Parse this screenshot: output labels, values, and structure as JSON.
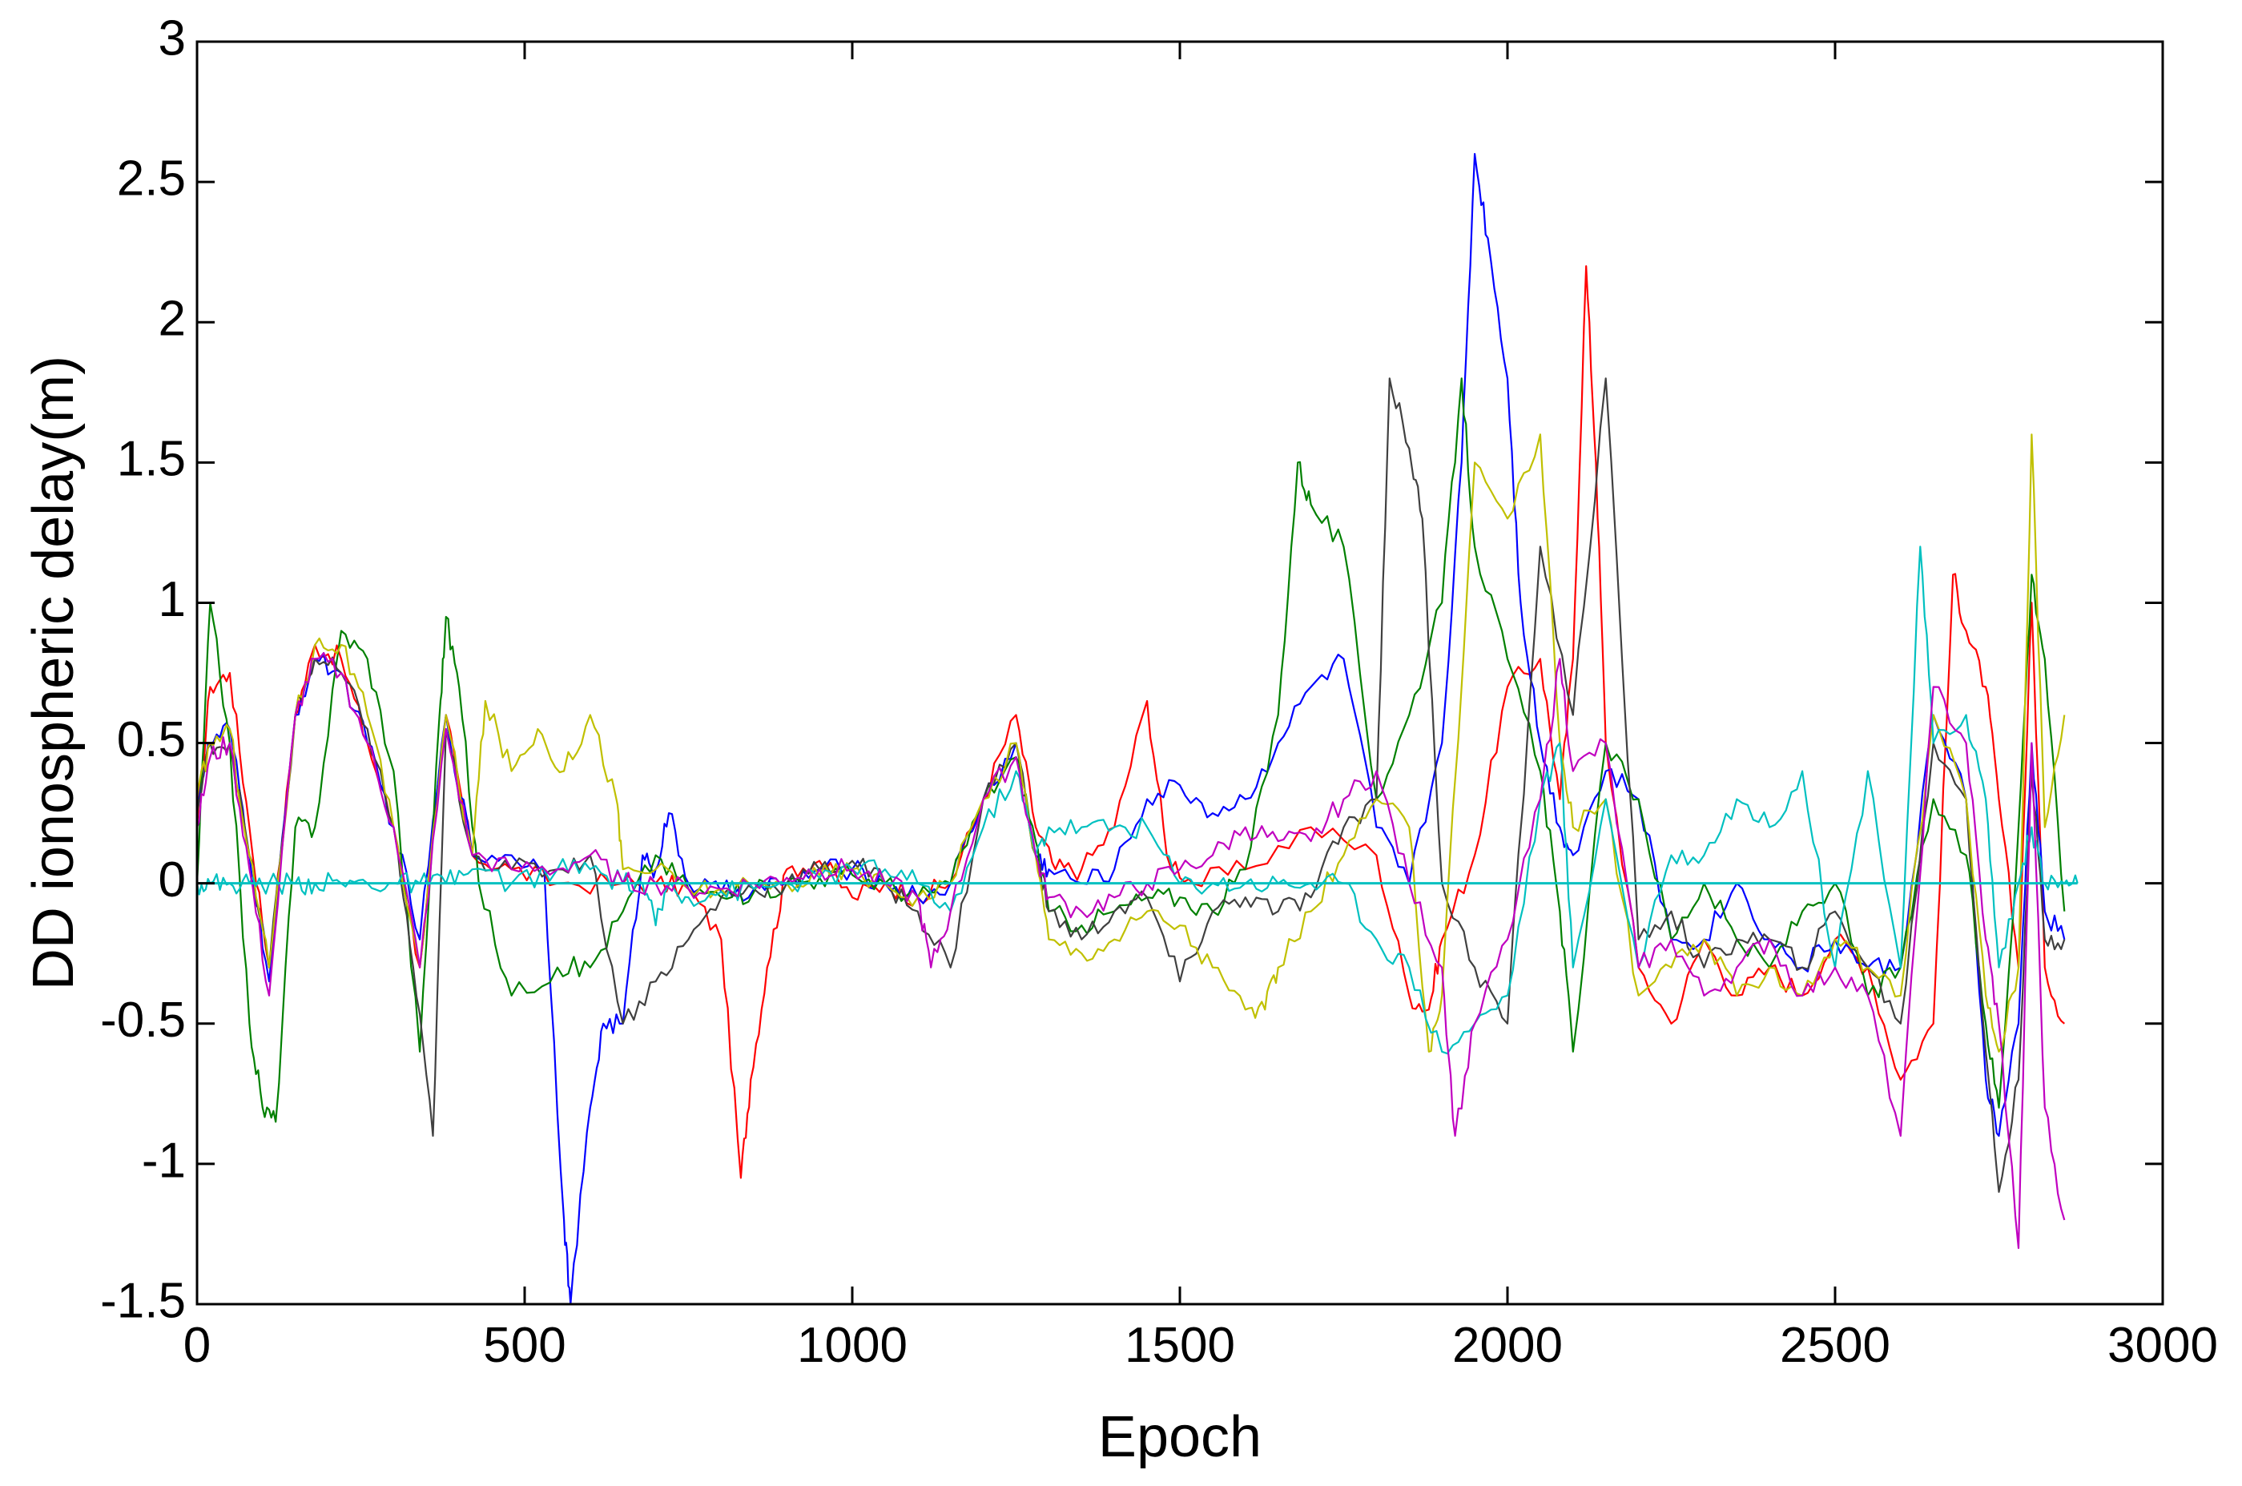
{
  "chart_data": {
    "type": "line",
    "title": "",
    "xlabel": "Epoch",
    "ylabel": "DD ionospheric delay(m)",
    "xlim": [
      0,
      3000
    ],
    "ylim": [
      -1.5,
      3
    ],
    "xticks": [
      0,
      500,
      1000,
      1500,
      2000,
      2500,
      3000
    ],
    "yticks": [
      -1.5,
      -1,
      -0.5,
      0,
      0.5,
      1,
      1.5,
      2,
      2.5,
      3
    ],
    "xtick_labels": [
      "0",
      "500",
      "1000",
      "1500",
      "2000",
      "2500",
      "3000"
    ],
    "ytick_labels": [
      "-1.5",
      "-1",
      "-0.5",
      "0",
      "0.5",
      "1",
      "1.5",
      "2",
      "2.5",
      "3"
    ],
    "grid": false,
    "legend": "none",
    "series": [
      {
        "color": "#ff0000",
        "x": [
          0,
          20,
          50,
          80,
          110,
          150,
          180,
          220,
          260,
          300,
          340,
          380,
          420,
          480,
          550,
          650,
          700,
          750,
          800,
          830,
          845,
          870,
          900,
          950,
          1000,
          1050,
          1100,
          1150,
          1200,
          1250,
          1280,
          1310,
          1350,
          1400,
          1450,
          1480,
          1520,
          1600,
          1700,
          1800,
          1850,
          1880,
          1900,
          1950,
          2000,
          2050,
          2080,
          2100,
          2120,
          2135,
          2150,
          2200,
          2250,
          2300,
          2350,
          2400,
          2450,
          2500,
          2550,
          2600,
          2650,
          2680,
          2700,
          2730,
          2750,
          2780,
          2800,
          2820,
          2850
        ],
        "y": [
          0.2,
          0.7,
          0.75,
          0.2,
          -0.3,
          0.6,
          0.85,
          0.8,
          0.5,
          0.2,
          -0.3,
          0.6,
          0.1,
          0.05,
          0.0,
          0.0,
          0.0,
          -0.02,
          -0.2,
          -1.05,
          -0.7,
          -0.3,
          0.05,
          0.08,
          -0.05,
          0.0,
          -0.05,
          0.0,
          0.3,
          0.6,
          0.2,
          0.05,
          0.05,
          0.2,
          0.65,
          0.1,
          0.0,
          0.05,
          0.2,
          0.1,
          -0.4,
          -0.45,
          -0.2,
          0.1,
          0.7,
          0.8,
          0.3,
          0.8,
          2.2,
          1.5,
          0.5,
          -0.3,
          -0.5,
          -0.2,
          -0.4,
          -0.3,
          -0.4,
          -0.2,
          -0.3,
          -0.7,
          -0.5,
          1.1,
          0.9,
          0.7,
          0.3,
          -0.3,
          1.0,
          -0.3,
          -0.5
        ]
      },
      {
        "color": "#0000ff",
        "x": [
          0,
          20,
          50,
          80,
          110,
          150,
          180,
          220,
          260,
          300,
          340,
          380,
          420,
          480,
          530,
          560,
          570,
          600,
          620,
          650,
          680,
          700,
          720,
          750,
          800,
          850,
          900,
          950,
          1000,
          1050,
          1100,
          1150,
          1200,
          1250,
          1280,
          1300,
          1350,
          1400,
          1450,
          1500,
          1550,
          1600,
          1650,
          1700,
          1750,
          1800,
          1850,
          1900,
          1930,
          1950,
          1970,
          2000,
          2020,
          2050,
          2080,
          2100,
          2150,
          2200,
          2250,
          2300,
          2350,
          2400,
          2450,
          2500,
          2550,
          2600,
          2650,
          2700,
          2730,
          2750,
          2780,
          2800,
          2820,
          2850
        ],
        "y": [
          0.3,
          0.5,
          0.55,
          0.1,
          -0.35,
          0.6,
          0.8,
          0.75,
          0.5,
          0.2,
          -0.2,
          0.6,
          0.1,
          0.1,
          0.05,
          -1.2,
          -1.5,
          -0.8,
          -0.5,
          -0.5,
          0.1,
          0.05,
          0.25,
          0.0,
          -0.03,
          -0.02,
          0.0,
          0.05,
          0.05,
          0.0,
          -0.05,
          0.0,
          0.3,
          0.5,
          0.1,
          0.05,
          0.0,
          0.05,
          0.3,
          0.35,
          0.25,
          0.3,
          0.5,
          0.7,
          0.8,
          0.2,
          0.0,
          0.5,
          1.5,
          2.6,
          2.3,
          1.8,
          1.0,
          0.5,
          0.2,
          0.1,
          0.4,
          0.3,
          -0.2,
          -0.2,
          0.0,
          -0.2,
          -0.3,
          -0.2,
          -0.3,
          -0.3,
          0.6,
          0.3,
          -0.7,
          -0.9,
          -0.5,
          0.5,
          -0.1,
          -0.2
        ]
      },
      {
        "color": "#008000",
        "x": [
          0,
          20,
          50,
          80,
          100,
          120,
          150,
          180,
          220,
          260,
          300,
          340,
          370,
          380,
          400,
          430,
          480,
          550,
          600,
          650,
          700,
          750,
          800,
          850,
          900,
          950,
          1000,
          1050,
          1100,
          1150,
          1200,
          1250,
          1280,
          1300,
          1350,
          1400,
          1450,
          1500,
          1550,
          1600,
          1650,
          1680,
          1700,
          1750,
          1800,
          1850,
          1900,
          1930,
          1950,
          2000,
          2050,
          2080,
          2100,
          2150,
          2200,
          2250,
          2300,
          2350,
          2400,
          2450,
          2500,
          2550,
          2600,
          2650,
          2700,
          2730,
          2750,
          2780,
          2800,
          2820,
          2850
        ],
        "y": [
          0.0,
          1.0,
          0.5,
          -0.5,
          -0.8,
          -0.85,
          0.2,
          0.2,
          0.9,
          0.8,
          0.4,
          -0.6,
          0.6,
          0.95,
          0.7,
          0.0,
          -0.4,
          -0.3,
          -0.3,
          -0.1,
          0.1,
          -0.02,
          -0.05,
          -0.03,
          0.0,
          0.02,
          0.03,
          0.0,
          -0.05,
          0.0,
          0.3,
          0.45,
          0.15,
          -0.1,
          -0.15,
          -0.1,
          -0.05,
          -0.05,
          -0.1,
          0.05,
          0.6,
          1.5,
          1.35,
          1.2,
          0.3,
          0.6,
          1.0,
          1.8,
          1.2,
          0.8,
          0.4,
          -0.1,
          -0.6,
          0.5,
          0.3,
          -0.2,
          0.0,
          -0.2,
          -0.3,
          -0.1,
          0.0,
          -0.4,
          -0.3,
          0.3,
          0.1,
          -0.5,
          -0.8,
          0.2,
          1.1,
          0.8,
          -0.1
        ]
      },
      {
        "color": "#404040",
        "x": [
          0,
          20,
          50,
          80,
          110,
          150,
          180,
          220,
          260,
          300,
          330,
          360,
          380,
          420,
          480,
          550,
          600,
          650,
          700,
          750,
          800,
          850,
          900,
          950,
          1000,
          1050,
          1100,
          1150,
          1200,
          1250,
          1280,
          1300,
          1350,
          1400,
          1450,
          1500,
          1550,
          1600,
          1650,
          1700,
          1750,
          1800,
          1820,
          1850,
          1870,
          1900,
          1950,
          2000,
          2050,
          2100,
          2150,
          2200,
          2250,
          2300,
          2350,
          2400,
          2450,
          2500,
          2550,
          2600,
          2650,
          2700,
          2730,
          2750,
          2780,
          2800,
          2820,
          2850
        ],
        "y": [
          0.25,
          0.5,
          0.5,
          0.1,
          -0.3,
          0.6,
          0.8,
          0.75,
          0.55,
          0.2,
          -0.3,
          -0.9,
          0.55,
          0.1,
          0.05,
          0.05,
          0.1,
          -0.5,
          -0.35,
          -0.2,
          -0.05,
          -0.02,
          0.0,
          0.05,
          0.08,
          0.0,
          -0.1,
          -0.3,
          0.3,
          0.5,
          0.1,
          -0.1,
          -0.2,
          -0.1,
          -0.05,
          -0.35,
          -0.1,
          -0.05,
          -0.1,
          -0.05,
          0.2,
          0.3,
          1.8,
          1.55,
          1.3,
          0.0,
          -0.3,
          -0.5,
          1.2,
          0.6,
          1.8,
          -0.2,
          -0.1,
          -0.3,
          -0.2,
          -0.2,
          -0.3,
          -0.1,
          -0.3,
          -0.5,
          0.5,
          0.3,
          -0.6,
          -1.1,
          -0.7,
          0.4,
          -0.2,
          -0.2
        ]
      },
      {
        "color": "#c0c000",
        "x": [
          0,
          20,
          50,
          80,
          110,
          150,
          180,
          220,
          260,
          300,
          340,
          380,
          420,
          440,
          480,
          520,
          560,
          600,
          640,
          650,
          700,
          750,
          800,
          850,
          900,
          950,
          1000,
          1050,
          1100,
          1150,
          1200,
          1250,
          1280,
          1300,
          1350,
          1400,
          1450,
          1500,
          1550,
          1600,
          1630,
          1650,
          1700,
          1750,
          1800,
          1850,
          1880,
          1900,
          1950,
          2000,
          2050,
          2080,
          2100,
          2150,
          2200,
          2250,
          2300,
          2350,
          2400,
          2450,
          2500,
          2550,
          2600,
          2650,
          2700,
          2730,
          2750,
          2780,
          2800,
          2820,
          2850
        ],
        "y": [
          0.3,
          0.5,
          0.55,
          0.1,
          -0.3,
          0.6,
          0.85,
          0.85,
          0.6,
          0.2,
          -0.3,
          0.6,
          0.1,
          0.65,
          0.4,
          0.55,
          0.4,
          0.6,
          0.3,
          0.05,
          0.05,
          -0.02,
          -0.02,
          -0.02,
          0.0,
          0.03,
          0.05,
          0.0,
          -0.05,
          0.0,
          0.3,
          0.5,
          0.1,
          -0.2,
          -0.25,
          -0.2,
          -0.1,
          -0.15,
          -0.3,
          -0.45,
          -0.45,
          -0.3,
          -0.1,
          0.1,
          0.3,
          0.2,
          -0.6,
          -0.4,
          1.5,
          1.3,
          1.6,
          0.5,
          0.2,
          0.3,
          -0.4,
          -0.3,
          -0.2,
          -0.4,
          -0.3,
          -0.4,
          -0.2,
          -0.3,
          -0.4,
          0.6,
          0.3,
          -0.4,
          -0.6,
          -0.3,
          1.6,
          0.2,
          0.6
        ]
      },
      {
        "color": "#00c0c0",
        "x": [
          0,
          20,
          50,
          80,
          110,
          150,
          180,
          220,
          260,
          300,
          340,
          380,
          420,
          480,
          550,
          600,
          650,
          680,
          700,
          720,
          750,
          800,
          850,
          900,
          950,
          1000,
          1050,
          1100,
          1150,
          1200,
          1250,
          1280,
          1300,
          1350,
          1400,
          1450,
          1500,
          1550,
          1600,
          1650,
          1700,
          1750,
          1800,
          1850,
          1900,
          1950,
          2000,
          2050,
          2080,
          2100,
          2150,
          2200,
          2250,
          2300,
          2350,
          2400,
          2450,
          2500,
          2550,
          2600,
          2630,
          2650,
          2700,
          2730,
          2750,
          2780,
          2800,
          2820,
          2850,
          2870
        ],
        "y": [
          0.0,
          0.0,
          0.0,
          0.0,
          0.0,
          0.0,
          0.0,
          0.0,
          0.0,
          0.0,
          0.0,
          0.0,
          0.05,
          0.0,
          0.05,
          0.05,
          0.0,
          0.0,
          -0.15,
          0.0,
          -0.05,
          -0.03,
          -0.02,
          0.0,
          0.02,
          0.05,
          0.05,
          0.0,
          -0.1,
          0.2,
          0.4,
          0.1,
          0.2,
          0.2,
          0.2,
          0.2,
          0.0,
          0.0,
          0.0,
          0.0,
          0.0,
          0.0,
          -0.2,
          -0.3,
          -0.6,
          -0.5,
          -0.4,
          0.3,
          0.5,
          -0.3,
          0.3,
          -0.3,
          0.1,
          0.1,
          0.3,
          0.2,
          0.4,
          -0.3,
          0.4,
          -0.3,
          1.2,
          0.5,
          0.6,
          0.3,
          -0.3,
          0.0,
          0.2,
          0.0,
          0.0,
          0.0
        ]
      },
      {
        "color": "#c000c0",
        "x": [
          0,
          20,
          50,
          80,
          110,
          150,
          180,
          220,
          260,
          300,
          340,
          380,
          420,
          480,
          550,
          600,
          650,
          700,
          750,
          800,
          850,
          900,
          950,
          1000,
          1050,
          1100,
          1120,
          1150,
          1200,
          1250,
          1280,
          1300,
          1350,
          1400,
          1450,
          1500,
          1550,
          1600,
          1650,
          1700,
          1750,
          1800,
          1850,
          1900,
          1920,
          1950,
          2000,
          2050,
          2080,
          2100,
          2150,
          2200,
          2250,
          2300,
          2350,
          2400,
          2450,
          2500,
          2550,
          2600,
          2650,
          2700,
          2730,
          2750,
          2780,
          2800,
          2820,
          2850
        ],
        "y": [
          0.2,
          0.45,
          0.5,
          0.05,
          -0.4,
          0.6,
          0.8,
          0.75,
          0.5,
          0.2,
          -0.3,
          0.55,
          0.1,
          0.05,
          0.05,
          0.1,
          0.0,
          0.0,
          -0.02,
          -0.02,
          0.0,
          0.02,
          0.05,
          0.05,
          0.0,
          -0.05,
          -0.3,
          -0.1,
          0.3,
          0.45,
          0.1,
          -0.05,
          -0.1,
          -0.05,
          0.0,
          0.05,
          0.1,
          0.2,
          0.15,
          0.15,
          0.3,
          0.4,
          0.0,
          -0.3,
          -0.9,
          -0.5,
          -0.2,
          0.3,
          0.8,
          0.4,
          0.5,
          -0.3,
          -0.2,
          -0.4,
          -0.3,
          -0.2,
          -0.4,
          -0.3,
          -0.4,
          -0.9,
          0.7,
          0.5,
          -0.2,
          -0.5,
          -1.3,
          0.5,
          -0.8,
          -1.2
        ]
      }
    ],
    "zero_line": {
      "color": "#00c0c0",
      "y": 0,
      "x": [
        0,
        2870
      ]
    }
  }
}
